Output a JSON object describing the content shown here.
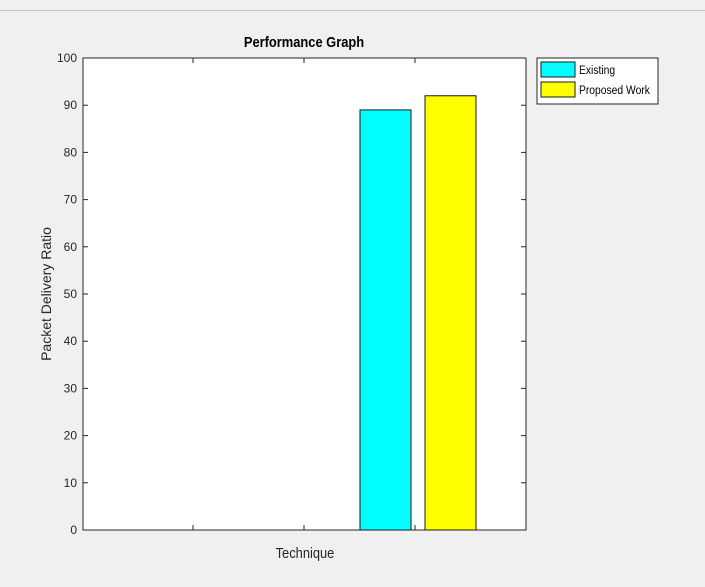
{
  "chart_data": {
    "type": "bar",
    "title": "Performance Graph",
    "xlabel": "Technique",
    "ylabel": "Packet Delivery Ratio",
    "ylim": [
      0,
      100
    ],
    "yticks": [
      "0",
      "10",
      "20",
      "30",
      "40",
      "50",
      "60",
      "70",
      "80",
      "90",
      "100"
    ],
    "categories": [
      ""
    ],
    "series": [
      {
        "name": "Existing",
        "values": [
          89
        ],
        "color": "#00ffff"
      },
      {
        "name": "Proposed Work",
        "values": [
          92
        ],
        "color": "#ffff00"
      }
    ],
    "grid": false,
    "legend": "top-right outside"
  }
}
